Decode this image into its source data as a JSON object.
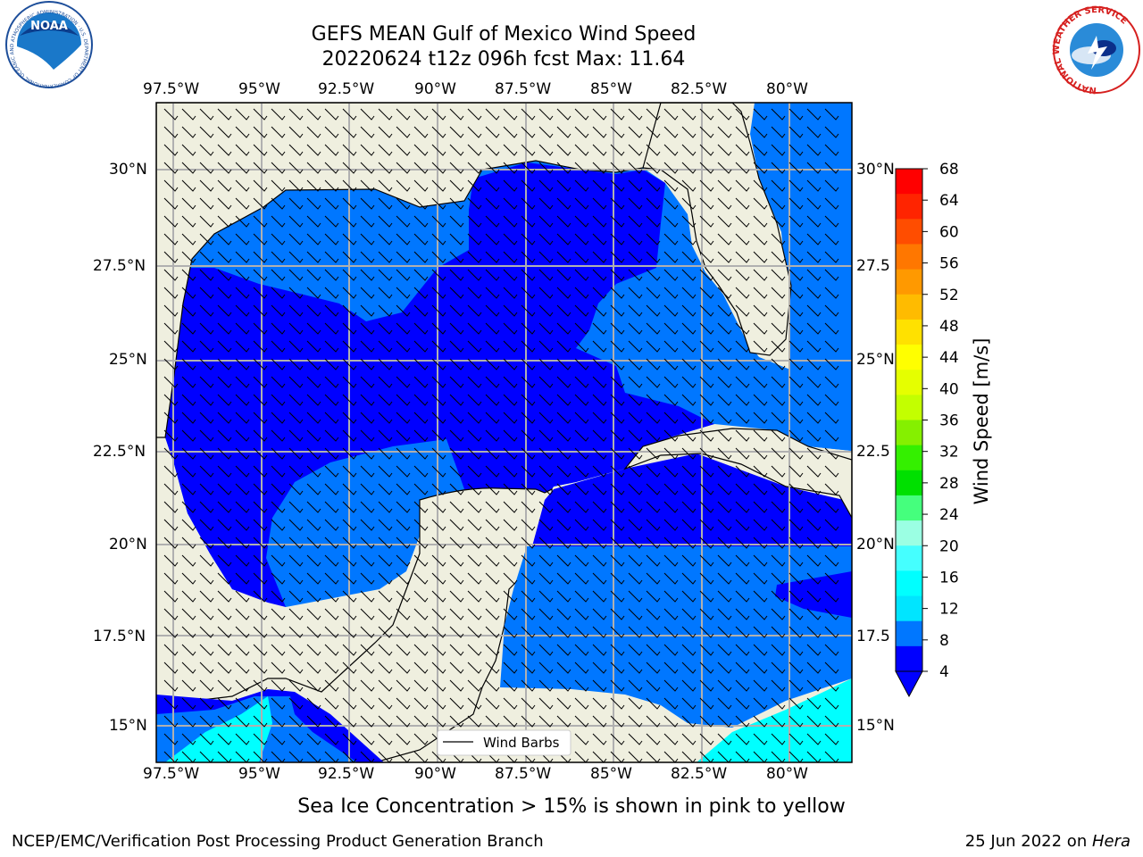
{
  "header": {
    "title_line1": "GEFS MEAN Gulf of Mexico Wind Speed",
    "title_line2": "20220624 t12z 096h fcst   Max: 11.64"
  },
  "logos": {
    "left": {
      "text": "NOAA",
      "ring_text": "NATIONAL OCEANIC AND ATMOSPHERIC ADMINISTRATION · U.S. DEPARTMENT OF COMMERCE"
    },
    "right": {
      "ring_text": "NATIONAL WEATHER SERVICE"
    }
  },
  "map": {
    "lon_labels": [
      "97.5°W",
      "95°W",
      "92.5°W",
      "90°W",
      "87.5°W",
      "85°W",
      "82.5°W",
      "80°W"
    ],
    "lat_labels_left": [
      "30°N",
      "27.5°N",
      "25°N",
      "22.5°N",
      "20°N",
      "17.5°N",
      "15°N"
    ],
    "lat_labels_right": [
      "30°N",
      "27.5",
      "25°N",
      "22.5",
      "20°N",
      "17.5",
      "15°N"
    ],
    "legend_label": "Wind Barbs",
    "colors": {
      "land": "#efefdf",
      "ocean_dark": "#0000ff",
      "ocean_mid": "#0077ff",
      "ocean_light": "#00ffff",
      "grid": "#b0b0b0"
    }
  },
  "colorbar": {
    "label": "Wind Speed [m/s]",
    "ticks": [
      "68",
      "64",
      "60",
      "56",
      "52",
      "48",
      "44",
      "40",
      "36",
      "32",
      "28",
      "24",
      "20",
      "16",
      "12",
      "8",
      "4"
    ],
    "colors": [
      "#ff0000",
      "#ff2400",
      "#ff4d00",
      "#ff7700",
      "#ff9900",
      "#ffbb00",
      "#ffe100",
      "#ffff00",
      "#e5ff00",
      "#c3ff00",
      "#85f000",
      "#34f000",
      "#00e000",
      "#45ff7d",
      "#9bffe3",
      "#45ffff",
      "#00ffff",
      "#00e5ff",
      "#0077ff",
      "#0000ff"
    ]
  },
  "footer": {
    "ice_note": "Sea Ice Concentration > 15% is shown in pink to yellow",
    "credit": "NCEP/EMC/Verification Post Processing Product Generation Branch",
    "date": "25 Jun 2022 on ",
    "machine": "Hera"
  }
}
